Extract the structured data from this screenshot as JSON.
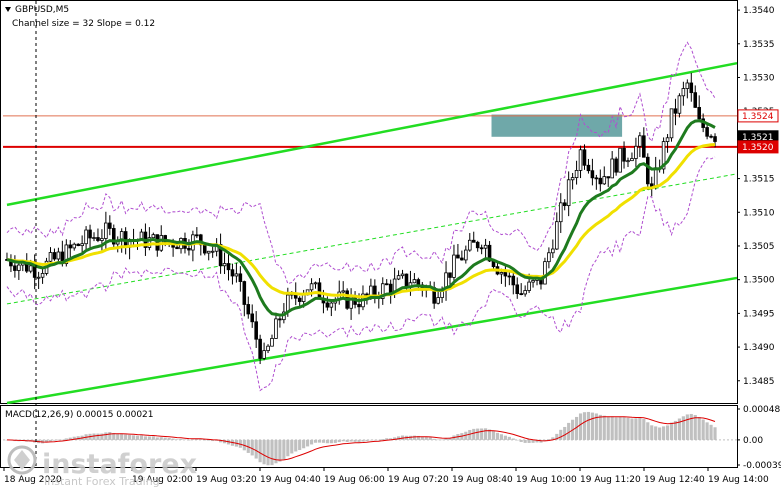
{
  "header": {
    "symbol": "GBPUSD,M5",
    "indicator_note": "Channel size = 32 Slope = 0.12"
  },
  "macd": {
    "label": "MACD(12,26,9) 0.00015 0.00021",
    "ticks": [
      "0.00048",
      "0.00",
      "-0.00039"
    ],
    "tick_values": [
      0.00048,
      0.0,
      -0.00039
    ]
  },
  "watermark": {
    "brand": "instaforex",
    "tagline": "Instant Forex Trading"
  },
  "colors": {
    "up_candle": "#000000",
    "down_candle": "#000000",
    "ma_green": "#1e7a1e",
    "ma_yellow": "#f0e000",
    "channel": "#22dd22",
    "envelope": "#b04fd0",
    "resistance": "#dd0000",
    "supply_zone": "#5f9ea0"
  },
  "chart_data": {
    "type": "candlestick",
    "symbol": "GBPUSD",
    "timeframe": "M5",
    "y_ticks": [
      "1.3540",
      "1.3535",
      "1.3530",
      "1.3525",
      "1.3520",
      "1.3515",
      "1.3510",
      "1.3505",
      "1.3500",
      "1.3495",
      "1.3490",
      "1.3485"
    ],
    "y_tick_values": [
      1.354,
      1.3535,
      1.353,
      1.3525,
      1.352,
      1.3515,
      1.351,
      1.3505,
      1.35,
      1.3495,
      1.349,
      1.3485
    ],
    "ylim": [
      1.34817,
      1.35412
    ],
    "x_ticks": [
      "18 Aug 2020",
      "19 Aug 02:00",
      "19 Aug 03:20",
      "19 Aug 04:40",
      "19 Aug 06:00",
      "19 Aug 07:20",
      "19 Aug 08:40",
      "19 Aug 10:00",
      "19 Aug 11:20",
      "19 Aug 12:40",
      "19 Aug 14:00"
    ],
    "price_labels": [
      {
        "text": "1.3524",
        "value": 1.35243,
        "color": "#dd0000",
        "fill": "#ffffff"
      },
      {
        "text": "1.3521",
        "value": 1.35212,
        "color": "#ffffff",
        "fill": "#000000"
      },
      {
        "text": "1.3520",
        "value": 1.35197,
        "color": "#ffffff",
        "fill": "#dd0000"
      }
    ],
    "levels": [
      {
        "name": "resistance",
        "value": 1.35197
      },
      {
        "name": "level-1.3524",
        "value": 1.35243
      }
    ],
    "zone": {
      "from_candle": 123,
      "to_candle": 155,
      "top": 1.35245,
      "bottom": 1.35212
    },
    "channel": {
      "upper": [
        [
          0,
          1.35111
        ],
        [
          180,
          1.35316
        ]
      ],
      "lower": [
        [
          0,
          1.34817
        ],
        [
          180,
          1.34998
        ]
      ]
    },
    "candle_count": 180
  }
}
